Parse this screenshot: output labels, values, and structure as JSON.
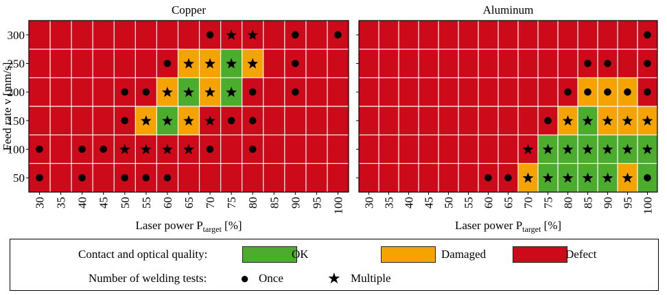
{
  "colors": {
    "ok": "#4bac2d",
    "damaged": "#f5a300",
    "defect": "#cc0a1a",
    "grid": "#ffffff"
  },
  "chart_data": [
    {
      "type": "heatmap",
      "title": "Copper",
      "xlabel": "Laser power P",
      "xlabel_sub": "target",
      "xlabel_unit": "[%]",
      "ylabel": "Feed rate v [mm/s]",
      "x": [
        30,
        35,
        40,
        45,
        50,
        55,
        60,
        65,
        70,
        75,
        80,
        85,
        90,
        95,
        100
      ],
      "y": [
        300,
        250,
        200,
        150,
        100,
        50
      ],
      "cells": [
        [
          "defect",
          "defect",
          "defect",
          "defect",
          "defect",
          "defect",
          "defect",
          "defect",
          "defect",
          "defect",
          "defect",
          "defect",
          "defect",
          "defect",
          "defect"
        ],
        [
          "defect",
          "defect",
          "defect",
          "defect",
          "defect",
          "defect",
          "defect",
          "damaged",
          "damaged",
          "ok",
          "damaged",
          "defect",
          "defect",
          "defect",
          "defect"
        ],
        [
          "defect",
          "defect",
          "defect",
          "defect",
          "defect",
          "defect",
          "damaged",
          "ok",
          "damaged",
          "ok",
          "defect",
          "defect",
          "defect",
          "defect",
          "defect"
        ],
        [
          "defect",
          "defect",
          "defect",
          "defect",
          "defect",
          "damaged",
          "ok",
          "damaged",
          "defect",
          "defect",
          "defect",
          "defect",
          "defect",
          "defect",
          "defect"
        ],
        [
          "defect",
          "defect",
          "defect",
          "defect",
          "defect",
          "defect",
          "defect",
          "defect",
          "defect",
          "defect",
          "defect",
          "defect",
          "defect",
          "defect",
          "defect"
        ],
        [
          "defect",
          "defect",
          "defect",
          "defect",
          "defect",
          "defect",
          "defect",
          "defect",
          "defect",
          "defect",
          "defect",
          "defect",
          "defect",
          "defect",
          "defect"
        ]
      ],
      "tests": [
        [
          "",
          "",
          "",
          "",
          "",
          "",
          "",
          "",
          "once",
          "multiple",
          "multiple",
          "",
          "once",
          "",
          "once"
        ],
        [
          "",
          "",
          "",
          "",
          "",
          "",
          "once",
          "multiple",
          "multiple",
          "multiple",
          "multiple",
          "",
          "once",
          "",
          ""
        ],
        [
          "",
          "",
          "",
          "",
          "once",
          "once",
          "multiple",
          "multiple",
          "multiple",
          "multiple",
          "once",
          "",
          "once",
          "",
          ""
        ],
        [
          "",
          "",
          "",
          "",
          "once",
          "multiple",
          "multiple",
          "multiple",
          "multiple",
          "once",
          "once",
          "",
          "",
          "",
          ""
        ],
        [
          "once",
          "",
          "once",
          "once",
          "multiple",
          "multiple",
          "multiple",
          "multiple",
          "once",
          "",
          "once",
          "",
          "",
          "",
          ""
        ],
        [
          "once",
          "",
          "once",
          "",
          "once",
          "once",
          "once",
          "",
          "",
          "",
          "",
          "",
          "",
          "",
          ""
        ]
      ]
    },
    {
      "type": "heatmap",
      "title": "Aluminum",
      "xlabel": "Laser power P",
      "xlabel_sub": "target",
      "xlabel_unit": "[%]",
      "ylabel": "",
      "x": [
        30,
        35,
        40,
        45,
        50,
        55,
        60,
        65,
        70,
        75,
        80,
        85,
        90,
        95,
        100
      ],
      "y": [
        300,
        250,
        200,
        150,
        100,
        50
      ],
      "cells": [
        [
          "defect",
          "defect",
          "defect",
          "defect",
          "defect",
          "defect",
          "defect",
          "defect",
          "defect",
          "defect",
          "defect",
          "defect",
          "defect",
          "defect",
          "defect"
        ],
        [
          "defect",
          "defect",
          "defect",
          "defect",
          "defect",
          "defect",
          "defect",
          "defect",
          "defect",
          "defect",
          "defect",
          "defect",
          "defect",
          "defect",
          "defect"
        ],
        [
          "defect",
          "defect",
          "defect",
          "defect",
          "defect",
          "defect",
          "defect",
          "defect",
          "defect",
          "defect",
          "defect",
          "damaged",
          "damaged",
          "damaged",
          "defect"
        ],
        [
          "defect",
          "defect",
          "defect",
          "defect",
          "defect",
          "defect",
          "defect",
          "defect",
          "defect",
          "defect",
          "damaged",
          "ok",
          "damaged",
          "damaged",
          "damaged"
        ],
        [
          "defect",
          "defect",
          "defect",
          "defect",
          "defect",
          "defect",
          "defect",
          "defect",
          "defect",
          "ok",
          "ok",
          "ok",
          "ok",
          "ok",
          "ok"
        ],
        [
          "defect",
          "defect",
          "defect",
          "defect",
          "defect",
          "defect",
          "defect",
          "defect",
          "damaged",
          "ok",
          "ok",
          "ok",
          "ok",
          "damaged",
          "ok"
        ]
      ],
      "tests": [
        [
          "",
          "",
          "",
          "",
          "",
          "",
          "",
          "",
          "",
          "",
          "",
          "",
          "",
          "",
          "once"
        ],
        [
          "",
          "",
          "",
          "",
          "",
          "",
          "",
          "",
          "",
          "",
          "",
          "once",
          "once",
          "",
          "once"
        ],
        [
          "",
          "",
          "",
          "",
          "",
          "",
          "",
          "",
          "",
          "",
          "once",
          "once",
          "once",
          "once",
          "once"
        ],
        [
          "",
          "",
          "",
          "",
          "",
          "",
          "",
          "",
          "",
          "once",
          "multiple",
          "multiple",
          "multiple",
          "multiple",
          "multiple"
        ],
        [
          "",
          "",
          "",
          "",
          "",
          "",
          "",
          "",
          "multiple",
          "multiple",
          "multiple",
          "multiple",
          "multiple",
          "multiple",
          "multiple"
        ],
        [
          "",
          "",
          "",
          "",
          "",
          "",
          "once",
          "once",
          "multiple",
          "multiple",
          "multiple",
          "multiple",
          "multiple",
          "multiple",
          "once"
        ]
      ]
    }
  ],
  "legend": {
    "quality_label": "Contact and optical quality:",
    "ok": "OK",
    "damaged": "Damaged",
    "defect": "Defect",
    "tests_label": "Number of welding tests:",
    "once": "Once",
    "multiple": "Multiple"
  }
}
